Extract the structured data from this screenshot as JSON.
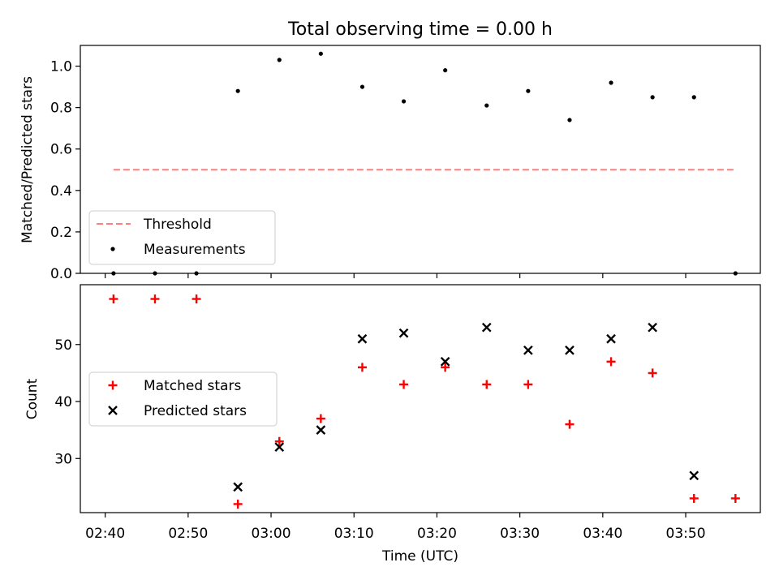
{
  "chart_data": [
    {
      "type": "scatter",
      "title": "Total observing time = 0.00 h",
      "ylabel": "Matched/Predicted stars",
      "xlabel": "",
      "xlim": [
        "02:37",
        "03:59"
      ],
      "ylim": [
        0,
        1.1
      ],
      "yticks": [
        0,
        0.2,
        0.4,
        0.6,
        0.8,
        1.0
      ],
      "ytick_labels": [
        "0.0",
        "0.2",
        "0.4",
        "0.6",
        "0.8",
        "1.0"
      ],
      "legend": {
        "placement": "lower-left",
        "entries": [
          "Threshold",
          "Measurements"
        ]
      },
      "series": [
        {
          "name": "Threshold",
          "kind": "dashed-line",
          "color": "#ff7f7f",
          "x": [
            "02:41",
            "03:56"
          ],
          "y": [
            0.5,
            0.5
          ]
        },
        {
          "name": "Measurements",
          "kind": "dot",
          "color": "#000000",
          "x": [
            "02:41",
            "02:46",
            "02:51",
            "02:56",
            "03:01",
            "03:06",
            "03:11",
            "03:16",
            "03:21",
            "03:26",
            "03:31",
            "03:36",
            "03:41",
            "03:46",
            "03:51",
            "03:56"
          ],
          "y": [
            0,
            0,
            0,
            0.88,
            1.03,
            1.06,
            0.9,
            0.83,
            0.98,
            0.81,
            0.88,
            0.74,
            0.92,
            0.85,
            0.85,
            0
          ]
        }
      ]
    },
    {
      "type": "scatter",
      "title": "",
      "ylabel": "Count",
      "xlabel": "Time (UTC)",
      "xlim": [
        "02:37",
        "03:59"
      ],
      "ylim": [
        20.5,
        60.5
      ],
      "xticks": [
        "02:40",
        "02:50",
        "03:00",
        "03:10",
        "03:20",
        "03:30",
        "03:40",
        "03:50"
      ],
      "yticks": [
        30,
        40,
        50
      ],
      "ytick_labels": [
        "30",
        "40",
        "50"
      ],
      "legend": {
        "placement": "center-left",
        "entries": [
          "Matched stars",
          "Predicted stars"
        ]
      },
      "series": [
        {
          "name": "Matched stars",
          "kind": "plus",
          "color": "#ff0000",
          "x": [
            "02:41",
            "02:46",
            "02:51",
            "02:56",
            "03:01",
            "03:06",
            "03:11",
            "03:16",
            "03:21",
            "03:26",
            "03:31",
            "03:36",
            "03:41",
            "03:46",
            "03:51",
            "03:56"
          ],
          "y": [
            58,
            58,
            58,
            22,
            33,
            37,
            46,
            43,
            46,
            43,
            43,
            36,
            47,
            45,
            23,
            23
          ]
        },
        {
          "name": "Predicted stars",
          "kind": "x",
          "color": "#000000",
          "x": [
            "02:56",
            "03:01",
            "03:06",
            "03:11",
            "03:16",
            "03:21",
            "03:26",
            "03:31",
            "03:36",
            "03:41",
            "03:46",
            "03:51"
          ],
          "y": [
            25,
            32,
            35,
            51,
            52,
            47,
            53,
            49,
            49,
            51,
            53,
            27
          ]
        }
      ]
    }
  ]
}
